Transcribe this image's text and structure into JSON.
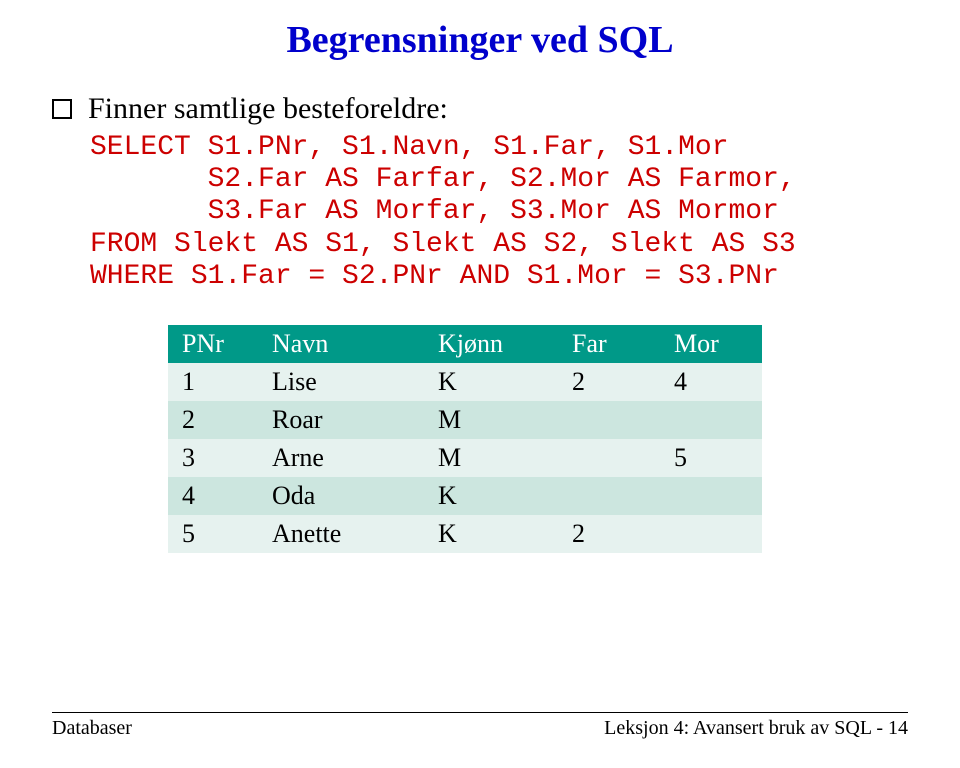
{
  "title": {
    "text": "Begrensninger ved SQL",
    "color": "#0000cc"
  },
  "bullet": {
    "text": "Finner samtlige besteforeldre:"
  },
  "code": {
    "color": "#cc0000",
    "lines": [
      "SELECT S1.PNr, S1.Navn, S1.Far, S1.Mor",
      "       S2.Far AS Farfar, S2.Mor AS Farmor,",
      "       S3.Far AS Morfar, S3.Mor AS Mormor",
      "FROM Slekt AS S1, Slekt AS S2, Slekt AS S3",
      "WHERE S1.Far = S2.PNr AND S1.Mor = S3.PNr"
    ]
  },
  "table": {
    "header_bg": "#009988",
    "header_fg": "#ffffff",
    "row_even_bg": "#e6f2ef",
    "row_odd_bg": "#ccE6df",
    "columns": [
      "PNr",
      "Navn",
      "Kjønn",
      "Far",
      "Mor"
    ],
    "rows": [
      [
        "1",
        "Lise",
        "K",
        "2",
        "4"
      ],
      [
        "2",
        "Roar",
        "M",
        "",
        ""
      ],
      [
        "3",
        "Arne",
        "M",
        "",
        "5"
      ],
      [
        "4",
        "Oda",
        "K",
        "",
        ""
      ],
      [
        "5",
        "Anette",
        "K",
        "2",
        ""
      ]
    ]
  },
  "footer": {
    "left": "Databaser",
    "right": "Leksjon 4: Avansert bruk av SQL - 14"
  }
}
